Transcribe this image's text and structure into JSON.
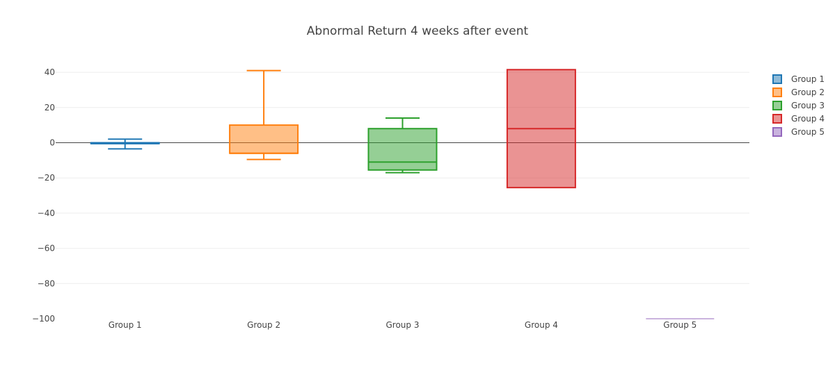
{
  "chart_data": {
    "type": "box",
    "title": "Abnormal Return 4 weeks after event",
    "xlabel": "",
    "ylabel": "",
    "categories": [
      "Group 1",
      "Group 2",
      "Group 3",
      "Group 4",
      "Group 5"
    ],
    "ylim": [
      -100,
      45
    ],
    "yticks": [
      40,
      20,
      0,
      -20,
      -40,
      -60,
      -80,
      -100
    ],
    "ytick_labels": [
      "40",
      "20",
      "0",
      "−20",
      "−40",
      "−60",
      "−80",
      "−100"
    ],
    "grid": true,
    "legend_position": "top-right",
    "series": [
      {
        "name": "Group 1",
        "color": "#1f77b4",
        "min": -3.5,
        "q1": -0.5,
        "median": -0.5,
        "q3": 0,
        "max": 2,
        "whisker_caps": true
      },
      {
        "name": "Group 2",
        "color": "#ff7f0e",
        "min": -9.5,
        "q1": -6,
        "median": -6,
        "q3": 10,
        "max": 41,
        "whisker_caps": true
      },
      {
        "name": "Group 3",
        "color": "#2ca02c",
        "min": -17,
        "q1": -15.5,
        "median": -11,
        "q3": 8,
        "max": 14,
        "whisker_caps": true
      },
      {
        "name": "Group 4",
        "color": "#d62728",
        "min": -25.5,
        "q1": -25.5,
        "median": 8,
        "q3": 41.5,
        "max": 41.5,
        "whisker_caps": false
      },
      {
        "name": "Group 5",
        "color": "#9467bd",
        "min": -100,
        "q1": -100,
        "median": -100,
        "q3": -100,
        "max": -100,
        "whisker_caps": false
      }
    ]
  }
}
